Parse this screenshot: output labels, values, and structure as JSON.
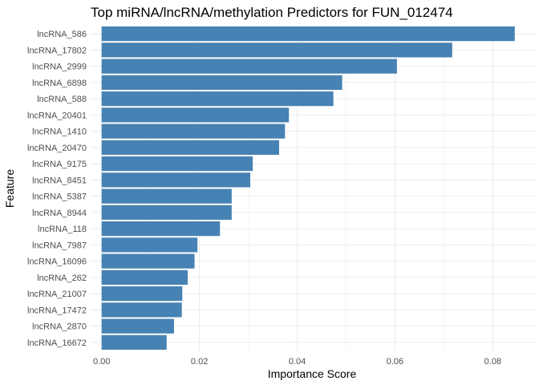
{
  "chart_data": {
    "type": "bar",
    "orientation": "horizontal",
    "title": "Top miRNA/lncRNA/methylation Predictors for FUN_012474",
    "xlabel": "Importance Score",
    "ylabel": "Feature",
    "categories": [
      "lncRNA_586",
      "lncRNA_17802",
      "lncRNA_2999",
      "lncRNA_6898",
      "lncRNA_588",
      "lncRNA_20401",
      "lncRNA_1410",
      "lncRNA_20470",
      "lncRNA_9175",
      "lncRNA_8451",
      "lncRNA_5387",
      "lncRNA_8944",
      "lncRNA_118",
      "lncRNA_7987",
      "lncRNA_16096",
      "lncRNA_262",
      "lncRNA_21007",
      "lncRNA_17472",
      "lncRNA_2870",
      "lncRNA_16672"
    ],
    "values": [
      0.0845,
      0.0717,
      0.0604,
      0.0492,
      0.0474,
      0.0383,
      0.0375,
      0.0363,
      0.0309,
      0.0304,
      0.0266,
      0.0266,
      0.0242,
      0.0196,
      0.019,
      0.0176,
      0.0165,
      0.0164,
      0.0148,
      0.0133
    ],
    "xlim": [
      -0.00225,
      0.0888
    ],
    "xticks": [
      0.0,
      0.02,
      0.04,
      0.06,
      0.08
    ],
    "xtick_labels": [
      "0.00",
      "0.02",
      "0.04",
      "0.06",
      "0.08"
    ],
    "bar_color": "#4682B4",
    "grid": true,
    "legend": "none"
  }
}
